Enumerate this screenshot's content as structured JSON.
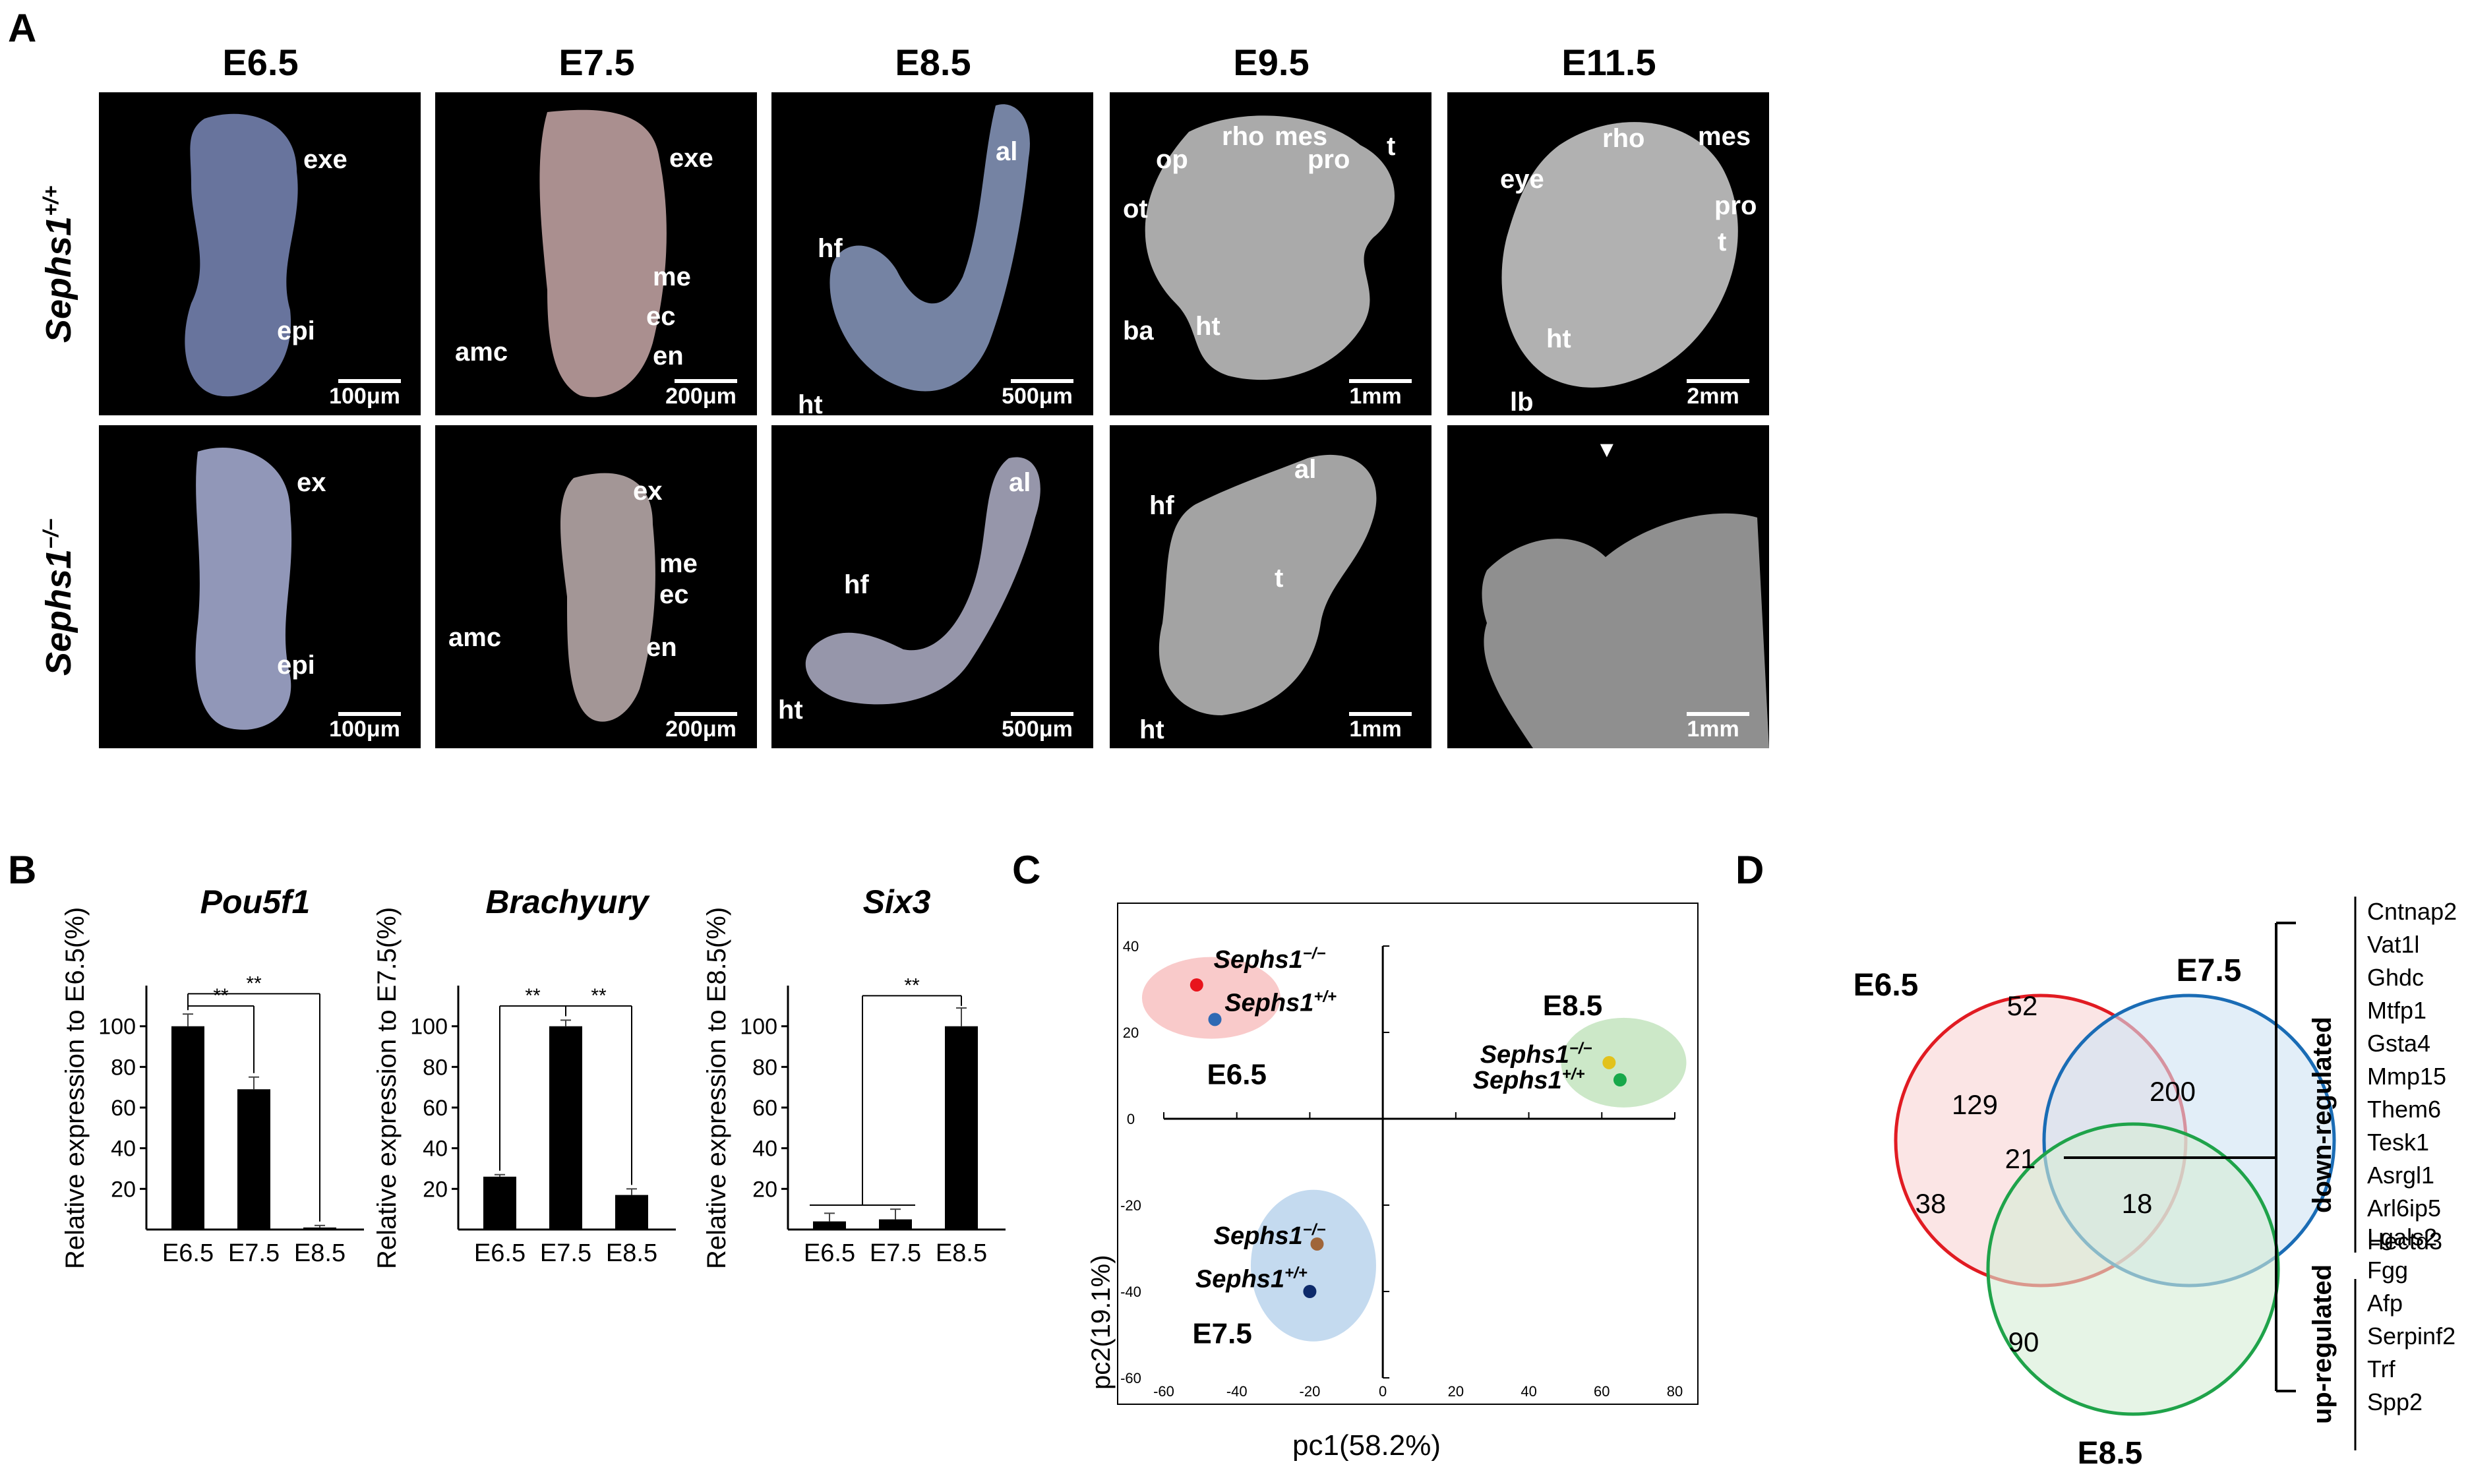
{
  "panels": {
    "a": "A",
    "b": "B",
    "c": "C",
    "d": "D"
  },
  "panel_a": {
    "stages": [
      "E6.5",
      "E7.5",
      "E8.5",
      "E9.5",
      "E11.5"
    ],
    "genotype_wt": "Sephs1",
    "genotype_wt_sup": "+/+",
    "genotype_ko": "Sephs1",
    "genotype_ko_sup": "−/−",
    "wt": [
      {
        "labels": [
          "exe",
          "epi"
        ],
        "scale": "100μm"
      },
      {
        "labels": [
          "exe",
          "me",
          "ec",
          "amc",
          "en"
        ],
        "scale": "200μm"
      },
      {
        "labels": [
          "al",
          "hf",
          "ht"
        ],
        "scale": "500μm"
      },
      {
        "labels": [
          "rho",
          "mes",
          "op",
          "pro",
          "t",
          "ot",
          "ba",
          "ht"
        ],
        "scale": "1mm"
      },
      {
        "labels": [
          "rho",
          "mes",
          "eye",
          "pro",
          "t",
          "ht",
          "lb"
        ],
        "scale": "2mm"
      }
    ],
    "ko": [
      {
        "labels": [
          "ex",
          "epi"
        ],
        "scale": "100μm"
      },
      {
        "labels": [
          "ex",
          "me",
          "ec",
          "amc",
          "en"
        ],
        "scale": "200μm"
      },
      {
        "labels": [
          "al",
          "hf",
          "ht"
        ],
        "scale": "500μm"
      },
      {
        "labels": [
          "al",
          "hf",
          "t",
          "ht"
        ],
        "scale": "1mm"
      },
      {
        "labels": [],
        "scale": "1mm"
      }
    ]
  },
  "chart_data": [
    {
      "type": "bar",
      "title": "Pou5f1",
      "ylabel": "Relative expression to E6.5(%)",
      "categories": [
        "E6.5",
        "E7.5",
        "E8.5"
      ],
      "values": [
        100,
        69,
        1
      ],
      "errors": [
        6,
        6,
        1
      ],
      "ylim": [
        0,
        120
      ],
      "yticks": [
        20,
        40,
        60,
        80,
        100
      ],
      "significance": [
        {
          "from": 0,
          "to": 1,
          "label": "**"
        },
        {
          "from": 0,
          "to": 2,
          "label": "**"
        }
      ]
    },
    {
      "type": "bar",
      "title": "Brachyury",
      "ylabel": "Relative expression to E7.5(%)",
      "categories": [
        "E6.5",
        "E7.5",
        "E8.5"
      ],
      "values": [
        26,
        100,
        17
      ],
      "errors": [
        1,
        3,
        3
      ],
      "ylim": [
        0,
        120
      ],
      "yticks": [
        20,
        40,
        60,
        80,
        100
      ],
      "significance": [
        {
          "from": 0,
          "to": 1,
          "label": "**"
        },
        {
          "from": 1,
          "to": 2,
          "label": "**"
        }
      ]
    },
    {
      "type": "bar",
      "title": "Six3",
      "ylabel": "Relative expression to E8.5(%)",
      "categories": [
        "E6.5",
        "E7.5",
        "E8.5"
      ],
      "values": [
        4,
        5,
        100
      ],
      "errors": [
        4,
        5,
        9
      ],
      "ylim": [
        0,
        120
      ],
      "yticks": [
        20,
        40,
        60,
        80,
        100
      ],
      "significance": [
        {
          "from": "0-1",
          "to": 2,
          "label": "**"
        }
      ]
    },
    {
      "type": "scatter",
      "xlabel": "pc1(58.2%)",
      "ylabel": "pc2(19.1%)",
      "xlim": [
        -60,
        80
      ],
      "ylim": [
        -60,
        40
      ],
      "xticks": [
        -60,
        -40,
        -20,
        0,
        20,
        40,
        60,
        80
      ],
      "yticks": [
        -60,
        -40,
        -20,
        0,
        20,
        40
      ],
      "groups": [
        {
          "name": "E6.5",
          "fill": "#f9caca",
          "points": [
            {
              "label": "Sephs1",
              "sup": "−/−",
              "x": -51,
              "y": 31,
              "color": "#e8141c"
            },
            {
              "label": "Sephs1",
              "sup": "+/+",
              "x": -46,
              "y": 23,
              "color": "#2e6ab4"
            }
          ]
        },
        {
          "name": "E8.5",
          "fill": "#cce8c8",
          "points": [
            {
              "label": "Sephs1",
              "sup": "−/−",
              "x": 62,
              "y": 13,
              "color": "#e2c21c"
            },
            {
              "label": "Sephs1",
              "sup": "+/+",
              "x": 65,
              "y": 9,
              "color": "#17a84a"
            }
          ]
        },
        {
          "name": "E7.5",
          "fill": "#c4daef",
          "points": [
            {
              "label": "Sephs1",
              "sup": "−/−",
              "x": -18,
              "y": -29,
              "color": "#a0663a"
            },
            {
              "label": "Sephs1",
              "sup": "+/+",
              "x": -20,
              "y": -40,
              "color": "#0d2a6a"
            }
          ]
        }
      ]
    },
    {
      "type": "venn",
      "sets": [
        {
          "name": "E6.5",
          "color": "#e11b22",
          "fill": "#f8d3d4"
        },
        {
          "name": "E7.5",
          "color": "#1a6cb5",
          "fill": "#cfe2f3"
        },
        {
          "name": "E8.5",
          "color": "#1fa34a",
          "fill": "#d6edd5"
        }
      ],
      "regions": {
        "E6.5_only": 129,
        "E7.5_only": 200,
        "E8.5_only": 90,
        "E6.5_E7.5": 52,
        "E6.5_E8.5": 38,
        "E7.5_E8.5": 18,
        "all": 21
      },
      "down_regulated_label": "down-regulated",
      "down_regulated": [
        "Cntnap2",
        "Vat1l",
        "Ghdc",
        "Mtfp1",
        "Gsta4",
        "Mmp15",
        "Them6",
        "Tesk1",
        "Asrgl1",
        "Arl6ip5",
        "Hectd3"
      ],
      "up_regulated_label": "up-regulated",
      "up_regulated": [
        "Lgals2",
        "Fgg",
        "Afp",
        "Serpinf2",
        "Trf",
        "Spp2"
      ]
    }
  ]
}
